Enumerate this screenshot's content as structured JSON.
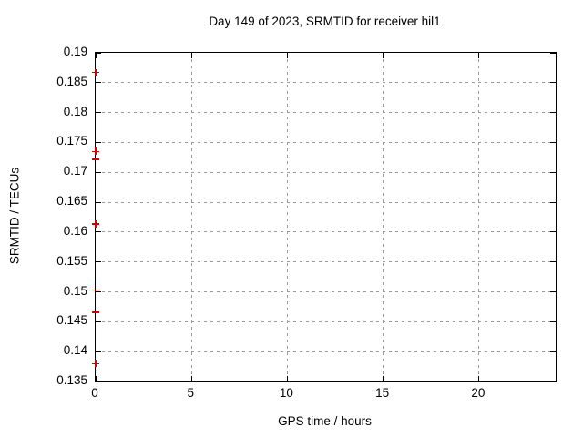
{
  "chart_data": {
    "type": "scatter",
    "title": "Day 149 of 2023, SRMTID for receiver hil1",
    "xlabel": "GPS time / hours",
    "ylabel": "SRMTID / TECUs",
    "xlim": [
      0,
      24
    ],
    "ylim": [
      0.135,
      0.19
    ],
    "grid": true,
    "legend": "none",
    "xticks": {
      "values": [
        0,
        5,
        10,
        15,
        20
      ],
      "labels": [
        "0",
        "5",
        "10",
        "15",
        "20"
      ]
    },
    "yticks": {
      "values": [
        0.135,
        0.14,
        0.145,
        0.15,
        0.155,
        0.16,
        0.165,
        0.17,
        0.175,
        0.18,
        0.185,
        0.19
      ],
      "labels": [
        "0.135",
        "0.14",
        "0.145",
        "0.15",
        "0.155",
        "0.16",
        "0.165",
        "0.17",
        "0.175",
        "0.18",
        "0.185",
        "0.19"
      ]
    },
    "series": [
      {
        "name": "SRMTID",
        "marker": "plus",
        "color": "#d40000",
        "points": [
          {
            "x": 0,
            "y": 0.1867,
            "marker": "plus"
          },
          {
            "x": 0,
            "y": 0.1735,
            "marker": "plus"
          },
          {
            "x": 0,
            "y": 0.1722,
            "marker": "dash"
          },
          {
            "x": 0,
            "y": 0.1614,
            "marker": "plus"
          },
          {
            "x": 0,
            "y": 0.1503,
            "marker": "dash"
          },
          {
            "x": 0,
            "y": 0.1466,
            "marker": "dash"
          },
          {
            "x": 0,
            "y": 0.138,
            "marker": "plus"
          }
        ]
      }
    ]
  },
  "colors": {
    "marker": "#d40000",
    "grid": "#9a9a9a",
    "border": "#000000",
    "background": "#ffffff",
    "text": "#000000"
  }
}
